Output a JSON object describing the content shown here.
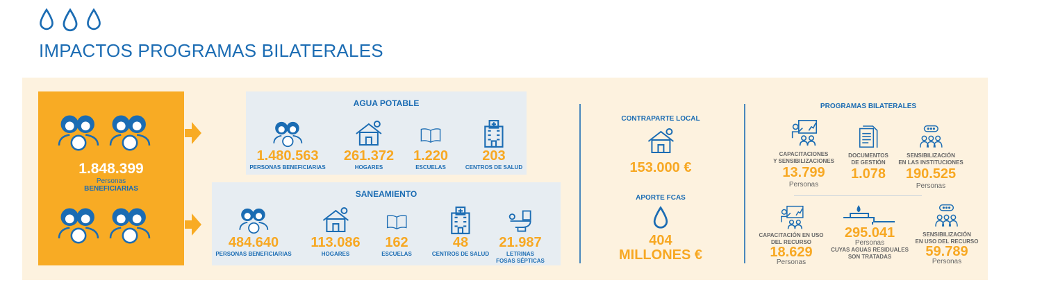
{
  "header": {
    "title": "IMPACTOS PROGRAMAS BILATERALES",
    "icons": [
      "drop-icon",
      "drop-icon",
      "drop-icon"
    ]
  },
  "colors": {
    "blue": "#1b6cb3",
    "orange": "#f8ab24",
    "band": "#fdf2df",
    "panel": "#e7edf2"
  },
  "total": {
    "value": "1.848.399",
    "unit": "Personas",
    "label": "BENEFICIARIAS"
  },
  "agua": {
    "title": "AGUA POTABLE",
    "items": [
      {
        "icon": "people-icon",
        "value": "1.480.563",
        "label": "PERSONAS BENEFICIARIAS"
      },
      {
        "icon": "house-icon",
        "value": "261.372",
        "label": "HOGARES"
      },
      {
        "icon": "book-icon",
        "value": "1.220",
        "label": "ESCUELAS"
      },
      {
        "icon": "hospital-icon",
        "value": "203",
        "label": "CENTROS DE SALUD"
      }
    ]
  },
  "saneamiento": {
    "title": "SANEAMIENTO",
    "items": [
      {
        "icon": "people-icon",
        "value": "484.640",
        "label": "PERSONAS BENEFICIARIAS"
      },
      {
        "icon": "house-icon",
        "value": "113.086",
        "label": "HOGARES"
      },
      {
        "icon": "book-icon",
        "value": "162",
        "label": "ESCUELAS"
      },
      {
        "icon": "hospital-icon",
        "value": "48",
        "label": "CENTROS DE SALUD"
      },
      {
        "icon": "toilet-icon",
        "value": "21.987",
        "label": "LETRINAS",
        "label2": "FOSAS SÉPTICAS"
      }
    ]
  },
  "contraparte": {
    "title": "CONTRAPARTE LOCAL",
    "value": "153.000 €"
  },
  "aporte": {
    "title": "APORTE FCAS",
    "value": "404",
    "value2": "MILLONES €"
  },
  "programas": {
    "title": "PROGRAMAS BILATERALES",
    "items": [
      {
        "icon": "presentation-icon",
        "label": "CAPACITACIONES",
        "label2": "Y SENSIBILIZACIONES",
        "value": "13.799",
        "unit": "Personas"
      },
      {
        "icon": "document-icon",
        "label": "DOCUMENTOS",
        "label2": "DE GESTIÓN",
        "value": "1.078"
      },
      {
        "icon": "group-chat-icon",
        "label": "SENSIBILIZACIÓN",
        "label2": "EN LAS INSTITUCIONES",
        "value": "190.525",
        "unit": "Personas"
      },
      {
        "icon": "presentation-icon",
        "label": "CAPACITACIÓN EN USO",
        "label2": "DEL RECURSO",
        "value": "18.629",
        "unit": "Personas"
      },
      {
        "icon": "water-treatment-icon",
        "value": "295.041",
        "unit": "Personas",
        "label": "CUYAS AGUAS RESIDUALES",
        "label2": "SON TRATADAS"
      },
      {
        "icon": "group-chat-icon",
        "label": "SENSIBILIZACIÓN",
        "label2": "EN USO DEL RECURSO",
        "value": "59.789",
        "unit": "Personas"
      }
    ]
  }
}
